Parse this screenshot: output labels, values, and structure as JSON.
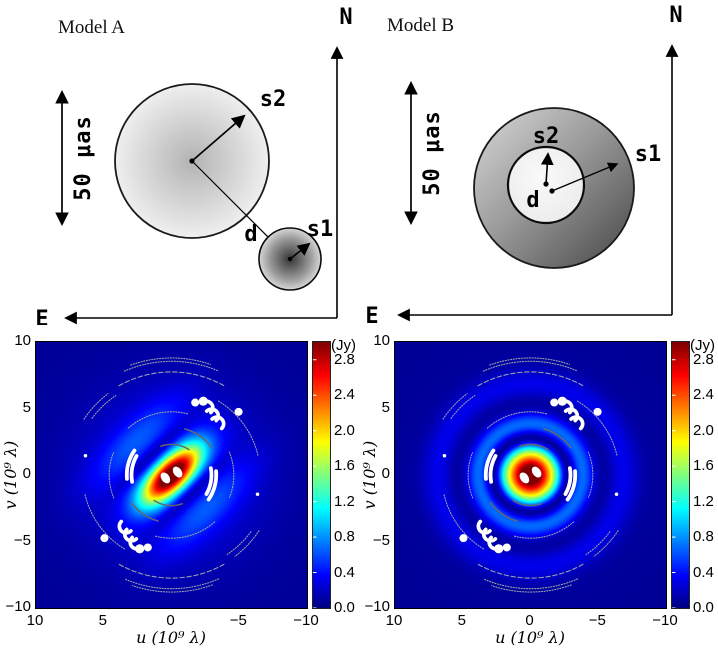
{
  "models": [
    {
      "title": "Model A",
      "scale_label": "50 μas",
      "north_label": "N",
      "east_label": "E",
      "s2_label": "s2",
      "s1_label": "s1",
      "d_label": "d"
    },
    {
      "title": "Model B",
      "scale_label": "50 μas",
      "north_label": "N",
      "east_label": "E",
      "s2_label": "s2",
      "s1_label": "s1",
      "d_label": "d"
    }
  ],
  "chart_data": [
    {
      "type": "heatmap",
      "subject": "Model A visibility amplitude over the uv-plane",
      "xlabel": "u (10⁹ λ)",
      "ylabel": "v (10⁹ λ)",
      "xlim": [
        10,
        -10
      ],
      "ylim": [
        -10,
        10
      ],
      "xticks": [
        "10",
        "5",
        "0",
        "−5",
        "−10"
      ],
      "yticks": [
        "10",
        "5",
        "0",
        "−5",
        "−10"
      ],
      "xtick_values": [
        10,
        5,
        0,
        -5,
        -10
      ],
      "ytick_values": [
        10,
        5,
        0,
        -5,
        -10
      ],
      "grid": false,
      "colorbar": {
        "unit": "(Jy)",
        "vmin": 0.0,
        "vmax": 3.0,
        "tick_labels": [
          "2.8",
          "2.4",
          "2.0",
          "1.6",
          "1.2",
          "0.8",
          "0.4",
          "0.0"
        ],
        "tick_values": [
          2.8,
          2.4,
          2.0,
          1.6,
          1.2,
          0.8,
          0.4,
          0.0
        ],
        "colormap": "jet"
      },
      "field_model": {
        "kind": "elongated-gaussian",
        "position_angle_deg": 45,
        "core_amp": 2.95,
        "core_sigma_major": 2.75,
        "core_sigma_minor": 1.15,
        "ridge_amp": 0.3,
        "ridge_offset": 3.8,
        "ridge_sigma": 1.3,
        "ridge_extent": 4.5,
        "lane_depth": 0.4,
        "lane_offset": 2.0,
        "lane_sigma": 0.62,
        "lane_extent": 3.2,
        "halo_amp": 0.4,
        "halo_sigma": 6.0,
        "floor": 0.07
      }
    },
    {
      "type": "heatmap",
      "subject": "Model B visibility amplitude over the uv-plane",
      "xlabel": "u (10⁹ λ)",
      "ylabel": "v (10⁹ λ)",
      "xlim": [
        10,
        -10
      ],
      "ylim": [
        -10,
        10
      ],
      "xticks": [
        "10",
        "5",
        "0",
        "−5",
        "−10"
      ],
      "yticks": [
        "10",
        "5",
        "0",
        "−5",
        "−10"
      ],
      "xtick_values": [
        10,
        5,
        0,
        -5,
        -10
      ],
      "ytick_values": [
        10,
        5,
        0,
        -5,
        -10
      ],
      "grid": false,
      "colorbar": {
        "unit": "(Jy)",
        "vmin": 0.0,
        "vmax": 3.0,
        "tick_labels": [
          "2.8",
          "2.4",
          "2.0",
          "1.6",
          "1.2",
          "0.8",
          "0.4",
          "0.0"
        ],
        "tick_values": [
          2.8,
          2.4,
          2.0,
          1.6,
          1.2,
          0.8,
          0.4,
          0.0
        ],
        "colormap": "jet"
      },
      "field_model": {
        "kind": "ring",
        "core_amp": 3.1,
        "core_sigma": 1.9,
        "null1_radius": 2.8,
        "null1_depth": 0.85,
        "null1_sigma": 0.55,
        "ring2_amp": 0.45,
        "ring2_radius": 3.9,
        "ring2_sigma": 0.8,
        "null2_radius": 5.4,
        "null2_depth": 0.45,
        "null2_sigma": 0.7,
        "ring3_amp": 0.2,
        "ring3_radius": 6.9,
        "ring3_sigma": 1.1,
        "halo_amp": 0.22,
        "halo_sigma": 5.5,
        "floor": 0.07
      }
    }
  ],
  "uv_overlay": {
    "symmetric": true,
    "point_color": "#ffffff",
    "track_color": "#9aa0ab",
    "dark_track_color": "#666670",
    "white_dots": [
      [
        0.45,
        -0.22,
        0.3,
        0.45,
        -35
      ],
      [
        -1.75,
        5.45,
        0.3,
        0.3,
        0
      ],
      [
        -2.35,
        5.55,
        0.34,
        0.34,
        0
      ],
      [
        -4.95,
        4.75,
        0.3,
        0.3,
        0
      ],
      [
        6.35,
        1.45,
        0.13,
        0.13,
        0
      ]
    ],
    "white_arcs": [
      [
        -2.55,
        5.05,
        0.5,
        45,
        225,
        0.27
      ],
      [
        -2.95,
        4.45,
        0.5,
        45,
        225,
        0.27
      ],
      [
        -3.35,
        3.85,
        0.5,
        45,
        225,
        0.27
      ],
      [
        0,
        0,
        2.95,
        -10,
        30,
        0.28
      ],
      [
        0,
        0,
        3.3,
        -5,
        35,
        0.28
      ]
    ],
    "gray_tracks": [
      [
        8.55,
        66,
        114,
        "dot"
      ],
      [
        8.8,
        70,
        110,
        "dot"
      ],
      [
        7.75,
        60,
        120,
        "dash"
      ],
      [
        7.25,
        36,
        56,
        "dot"
      ],
      [
        7.7,
        33,
        53,
        "dot"
      ],
      [
        4.75,
        48,
        105,
        "dot"
      ],
      [
        6.55,
        122,
        168,
        "dot"
      ],
      [
        4.6,
        -22,
        22,
        "dot"
      ],
      [
        2.3,
        70,
        125,
        "solid"
      ],
      [
        3.6,
        106,
        146,
        "solid"
      ]
    ]
  }
}
